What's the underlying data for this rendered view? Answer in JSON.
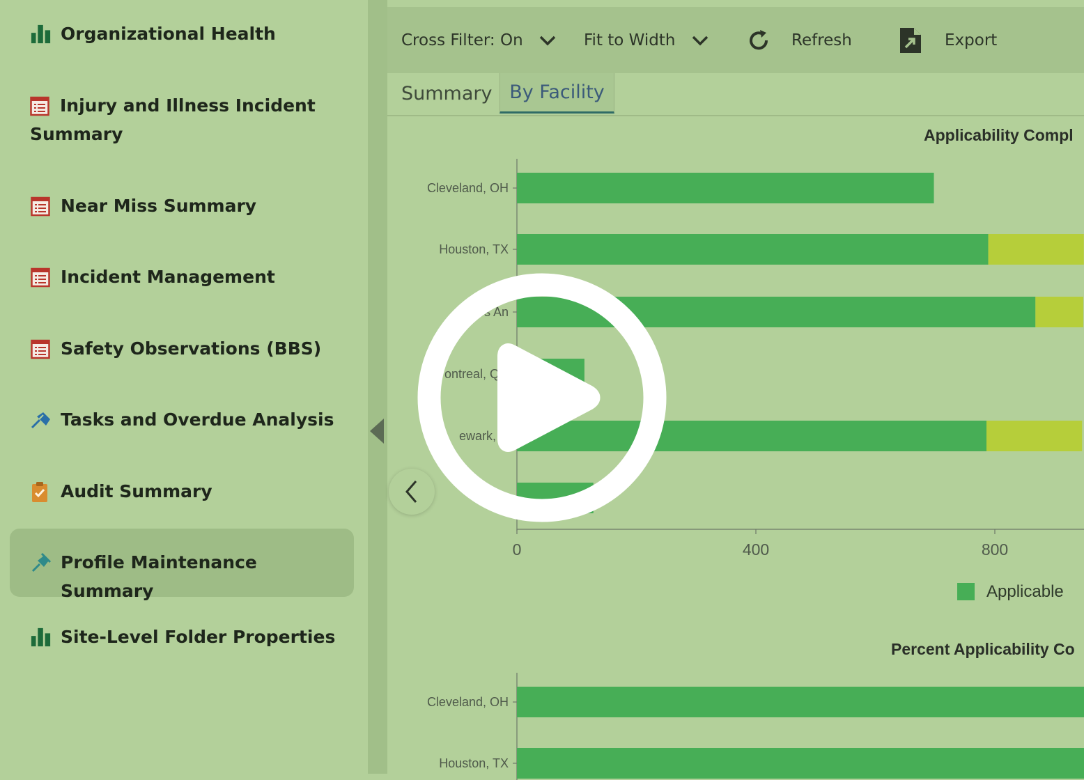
{
  "sidebar": {
    "items": [
      {
        "label": "Organizational Health",
        "icon": "bar-chart-icon"
      },
      {
        "label": "Injury and Illness Incident Summary",
        "icon": "report-icon"
      },
      {
        "label": "Near Miss Summary",
        "icon": "report-icon"
      },
      {
        "label": "Incident Management",
        "icon": "report-icon"
      },
      {
        "label": "Safety Observations (BBS)",
        "icon": "report-icon"
      },
      {
        "label": "Tasks and Overdue Analysis",
        "icon": "pin-icon"
      },
      {
        "label": "Audit Summary",
        "icon": "clipboard-check-icon"
      },
      {
        "label": "Profile Maintenance Summary",
        "icon": "pin-icon",
        "active": true
      },
      {
        "label": "Site-Level Folder Properties",
        "icon": "bar-chart-icon"
      }
    ]
  },
  "toolbar": {
    "cross_filter": "Cross Filter: On",
    "fit": "Fit to Width",
    "refresh": "Refresh",
    "export": "Export"
  },
  "tabs": [
    {
      "label": "Summary",
      "active": false
    },
    {
      "label": "By Facility",
      "active": true
    }
  ],
  "colors": {
    "applicable": "#47ae56",
    "second_series": "#b6ce3a",
    "background": "#b3d09a",
    "active_tab_underline": "#2f6b66"
  },
  "chart_data": [
    {
      "type": "bar",
      "orientation": "horizontal",
      "stacked": true,
      "title": "Applicability Compl",
      "categories": [
        "Cleveland, OH",
        "Houston, TX",
        "Los Angeles, CA",
        "Montreal, QC",
        "Newark, NJ",
        "Tijuana"
      ],
      "category_labels": [
        "Cleveland, OH",
        "Houston, TX",
        "Los An",
        "ontreal, QC",
        "ewark, N",
        "Tijua"
      ],
      "series": [
        {
          "name": "Applicable",
          "values": [
            698,
            789,
            868,
            113,
            786,
            128
          ]
        },
        {
          "values": [
            0,
            160,
            80,
            0,
            160,
            0
          ]
        }
      ],
      "xticks": [
        0,
        400,
        800
      ],
      "xlim": [
        0,
        949
      ],
      "legend": [
        "Applicable"
      ],
      "legend_position": "bottom-right"
    },
    {
      "type": "bar",
      "orientation": "horizontal",
      "stacked": true,
      "title": "Percent Applicability Co",
      "categories": [
        "Cleveland, OH",
        "Houston, TX"
      ],
      "series": [
        {
          "name": "Applicable",
          "values": [
            100,
            100
          ]
        }
      ],
      "xlim": [
        0,
        100
      ]
    }
  ]
}
